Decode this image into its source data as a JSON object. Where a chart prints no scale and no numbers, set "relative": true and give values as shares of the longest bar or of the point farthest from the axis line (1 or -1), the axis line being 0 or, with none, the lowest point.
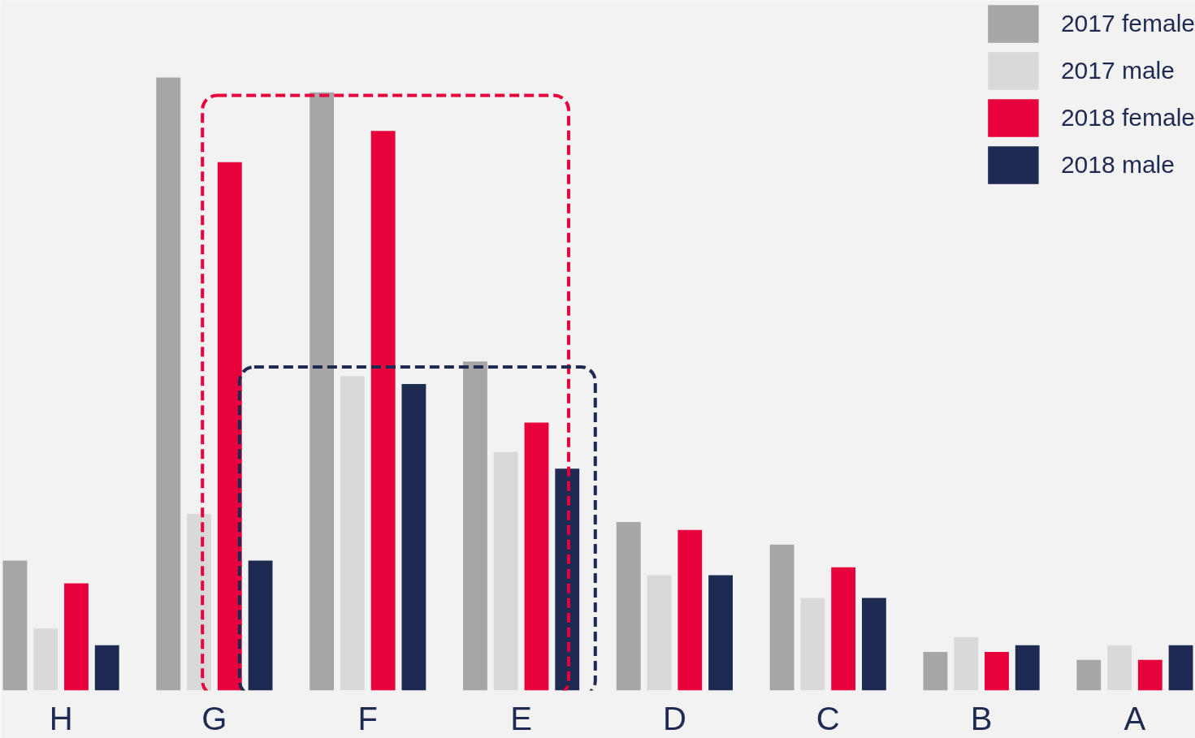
{
  "chart_data": {
    "type": "bar",
    "relative": true,
    "categories": [
      "H",
      "G",
      "F",
      "E",
      "D",
      "C",
      "B",
      "A"
    ],
    "series": [
      {
        "name": "2017 female",
        "color": "#a6a6a6",
        "values": [
          0.212,
          1,
          0.976,
          0.537,
          0.275,
          0.238,
          0.063,
          0.05
        ]
      },
      {
        "name": "2017 male",
        "color": "#d9d9d9",
        "values": [
          0.101,
          0.288,
          0.513,
          0.389,
          0.188,
          0.151,
          0.087,
          0.074
        ]
      },
      {
        "name": "2018 female",
        "color": "#e8003d",
        "values": [
          0.175,
          0.862,
          0.913,
          0.437,
          0.262,
          0.201,
          0.063,
          0.05
        ]
      },
      {
        "name": "2018 male",
        "color": "#1f2a52",
        "values": [
          0.074,
          0.212,
          0.5,
          0.362,
          0.188,
          0.151,
          0.074,
          0.074
        ]
      }
    ],
    "legend": "top right",
    "grid": false
  }
}
